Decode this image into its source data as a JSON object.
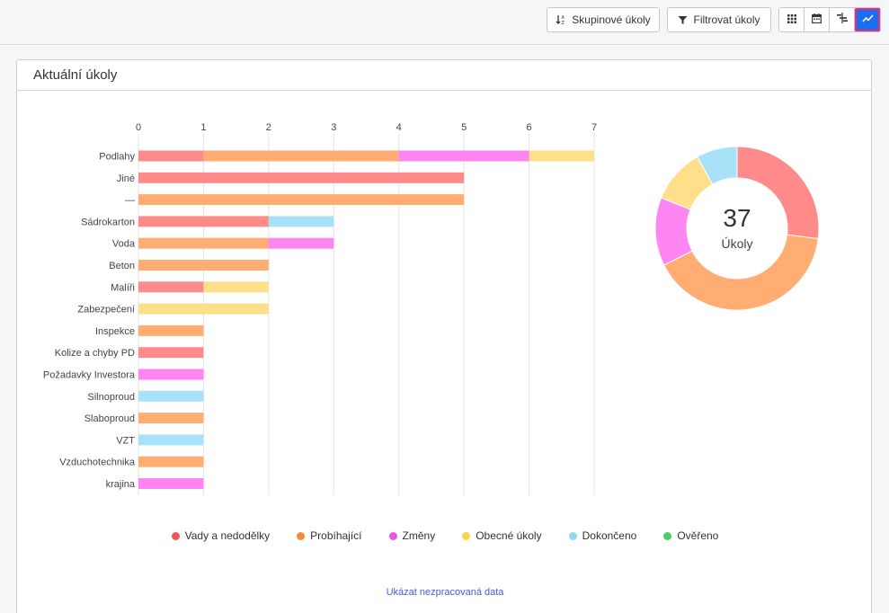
{
  "toolbar": {
    "group_label": "Skupinové úkoly",
    "filter_label": "Filtrovat úkoly",
    "views": [
      {
        "icon": "grid-icon",
        "active": false
      },
      {
        "icon": "calendar-icon",
        "active": false
      },
      {
        "icon": "gantt-icon",
        "active": false
      },
      {
        "icon": "chart-line-icon",
        "active": true
      }
    ]
  },
  "card": {
    "title": "Aktuální úkoly",
    "raw_data_link": "Ukázat nezpracovaná data"
  },
  "colors": {
    "Vady a nedodělky": "#ff8a8a",
    "Probíhající": "#ffad73",
    "Změny": "#ff85f2",
    "Obecné úkoly": "#ffdf8a",
    "Dokončeno": "#a8e2f8",
    "Ověřeno": "#7de08a"
  },
  "legend": [
    {
      "label": "Vady a nedodělky",
      "dot": "#f25757"
    },
    {
      "label": "Probíhající",
      "dot": "#f28c3c"
    },
    {
      "label": "Změny",
      "dot": "#e855e8"
    },
    {
      "label": "Obecné úkoly",
      "dot": "#ffd24d"
    },
    {
      "label": "Dokončeno",
      "dot": "#8fd8f5"
    },
    {
      "label": "Ověřeno",
      "dot": "#4ccf62"
    }
  ],
  "donut": {
    "count": "37",
    "label": "Úkoly"
  },
  "chart_data": [
    {
      "type": "bar",
      "orientation": "horizontal",
      "stacked": true,
      "xlim": [
        0,
        7
      ],
      "ticks": [
        0,
        1,
        2,
        3,
        4,
        5,
        6,
        7
      ],
      "grid": true,
      "legend_position": "bottom",
      "categories": [
        "Podlahy",
        "Jiné",
        "—",
        "Sádrokarton",
        "Voda",
        "Beton",
        "Malíři",
        "Zabezpečení",
        "Inspekce",
        "Kolize a chyby PD",
        "Požadavky Investora",
        "Silnoproud",
        "Slaboproud",
        "VZT",
        "Vzduchotechnika",
        "krajina"
      ],
      "series": [
        {
          "name": "Vady a nedodělky",
          "values": [
            1,
            5,
            0,
            2,
            0,
            0,
            1,
            0,
            0,
            1,
            0,
            0,
            0,
            0,
            0,
            0
          ]
        },
        {
          "name": "Probíhající",
          "values": [
            3,
            0,
            5,
            0,
            2,
            2,
            0,
            0,
            1,
            0,
            0,
            0,
            1,
            0,
            1,
            0
          ]
        },
        {
          "name": "Změny",
          "values": [
            2,
            0,
            0,
            0,
            1,
            0,
            0,
            0,
            0,
            0,
            1,
            0,
            0,
            0,
            0,
            1
          ]
        },
        {
          "name": "Obecné úkoly",
          "values": [
            1,
            0,
            0,
            0,
            0,
            0,
            1,
            2,
            0,
            0,
            0,
            0,
            0,
            0,
            0,
            0
          ]
        },
        {
          "name": "Dokončeno",
          "values": [
            0,
            0,
            0,
            1,
            0,
            0,
            0,
            0,
            0,
            0,
            0,
            1,
            0,
            1,
            0,
            0
          ]
        },
        {
          "name": "Ověřeno",
          "values": [
            0,
            0,
            0,
            0,
            0,
            0,
            0,
            0,
            0,
            0,
            0,
            0,
            0,
            0,
            0,
            0
          ]
        }
      ]
    },
    {
      "type": "pie",
      "style": "donut",
      "total": 37,
      "slices": [
        {
          "name": "Vady a nedodělky",
          "value": 10
        },
        {
          "name": "Probíhající",
          "value": 15
        },
        {
          "name": "Změny",
          "value": 5
        },
        {
          "name": "Obecné úkoly",
          "value": 4
        },
        {
          "name": "Dokončeno",
          "value": 3
        }
      ]
    }
  ]
}
